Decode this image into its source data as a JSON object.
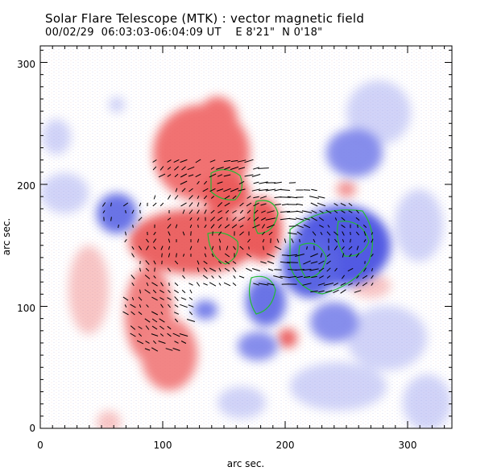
{
  "header": {
    "title": "Solar Flare Telescope (MTK) : vector magnetic field",
    "subtitle": "00/02/29  06:03:03-06:04:09 UT    E 8'21\"  N 0'18\""
  },
  "axes": {
    "xlabel": "arc sec.",
    "ylabel": "arc sec.",
    "xticks": [
      "0",
      "100",
      "200",
      "300"
    ],
    "yticks": [
      "0",
      "100",
      "200",
      "300"
    ],
    "xlim": [
      0,
      340
    ],
    "ylim": [
      0,
      310
    ]
  },
  "colors": {
    "positive_polarity": "#e84a4a",
    "negative_polarity": "#4a55e0",
    "contour": "#22bb33",
    "vectors": "#000000"
  }
}
